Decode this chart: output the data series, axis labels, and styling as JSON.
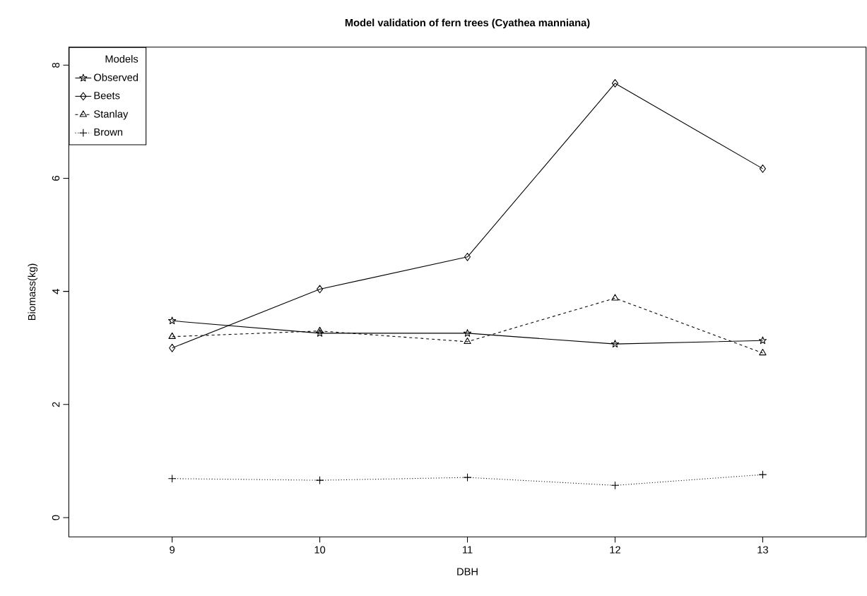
{
  "chart_data": {
    "type": "line",
    "title": "Model validation of fern trees (Cyathea manniana)",
    "xlabel": "DBH",
    "ylabel": "Biomass(kg)",
    "legend_title": "Models",
    "legend": "top left",
    "x": [
      9,
      10,
      11,
      12,
      13
    ],
    "series": [
      {
        "name": "Observed",
        "color": "#000000",
        "marker": "star",
        "line_style": "solid",
        "values": [
          3.48,
          3.26,
          3.26,
          3.07,
          3.13
        ]
      },
      {
        "name": "Beets",
        "color": "#000000",
        "marker": "diamond",
        "line_style": "solid",
        "values": [
          3.0,
          4.04,
          4.61,
          7.68,
          6.17
        ]
      },
      {
        "name": "Stanlay",
        "color": "#000000",
        "marker": "triangle",
        "line_style": "dashed",
        "values": [
          3.2,
          3.3,
          3.11,
          3.88,
          2.91
        ]
      },
      {
        "name": "Brown",
        "color": "#000000",
        "marker": "cross",
        "line_style": "dotted",
        "values": [
          0.69,
          0.66,
          0.71,
          0.57,
          0.76
        ]
      }
    ],
    "xlim": [
      8.3,
      13.7
    ],
    "ylim": [
      -0.34,
      8.32
    ],
    "xticks": [
      9,
      10,
      11,
      12,
      13
    ],
    "yticks": [
      0,
      2,
      4,
      6,
      8
    ]
  }
}
